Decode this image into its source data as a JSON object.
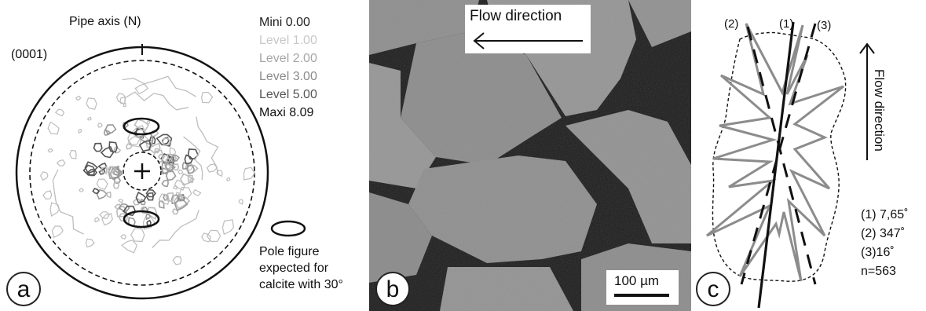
{
  "panel_a": {
    "letter": "a",
    "axis_label": "Pipe axis (N)",
    "plane_label": "(0001)",
    "levels": [
      {
        "text": "Mini 0.00",
        "color": "#222222"
      },
      {
        "text": "Level 1.00",
        "color": "#c8c8c8"
      },
      {
        "text": "Level 2.00",
        "color": "#a6a6a6"
      },
      {
        "text": "Level 3.00",
        "color": "#8a8a8a"
      },
      {
        "text": "Level 5.00",
        "color": "#555555"
      },
      {
        "text": "Maxi 8.09",
        "color": "#111111"
      }
    ],
    "pole_caption": [
      "Pole figure",
      "expected for",
      "calcite with 30°"
    ]
  },
  "panel_b": {
    "letter": "b",
    "flow_label": "Flow direction",
    "scale_label": "100 µm"
  },
  "panel_c": {
    "letter": "c",
    "flow_label": "Flow direction",
    "line_labels": [
      "(1)",
      "(2)",
      "(3)"
    ],
    "angles": [
      "(1) 7,65˚",
      "(2) 347˚",
      "(3)16˚",
      "n=563"
    ]
  },
  "colors": {
    "contour_light": "#bdbdbd",
    "contour_mid": "#9a9a9a",
    "contour_dark": "#555555",
    "rose": "#8c8c8c",
    "micrograph_grain": "#8f8f8f",
    "micrograph_pore": "#111111"
  }
}
